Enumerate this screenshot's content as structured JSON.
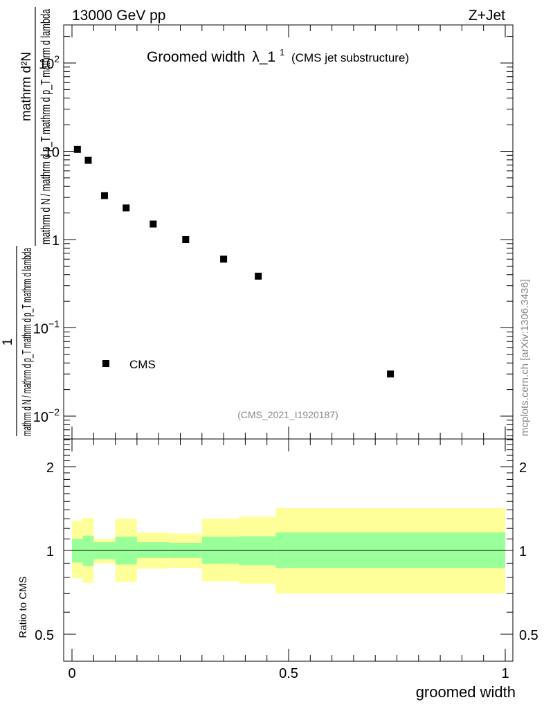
{
  "header": {
    "energy_label": "13000 GeV pp",
    "process_label": "Z+Jet"
  },
  "side_label": "mcplots.cern.ch [arXiv:1306.3436]",
  "colors": {
    "inner_band": "#99ff99",
    "outer_band": "#ffff99",
    "marker": "#000000",
    "watermark": "#888888"
  },
  "chart_data": [
    {
      "type": "scatter",
      "title_main": "Groomed width",
      "title_symbol": "λ_1",
      "title_sup": "1",
      "title_note": "(CMS jet substructure)",
      "analysis_tag": "(CMS_2021_I1920187)",
      "ylabel_frac_top": "1",
      "ylabel_frac_bottom": "mathrm d N / mathrm d p_T mathrm d p_T mathrm d lambda",
      "ylabel_numerator": "mathrm d²N",
      "ylabel_denominator": "mathrm d N / mathrm d p_T mathrm d p_T mathrm d lambda",
      "yscale": "log",
      "ylim": [
        0.006,
        300
      ],
      "xlim": [
        -0.02,
        1.02
      ],
      "y_tick_labels": [
        {
          "value": 100,
          "base": "10",
          "exp": "2"
        },
        {
          "value": 10,
          "base": "10",
          "exp": ""
        },
        {
          "value": 1,
          "base": "1",
          "exp": ""
        },
        {
          "value": 0.1,
          "base": "10",
          "exp": "−1"
        },
        {
          "value": 0.01,
          "base": "10",
          "exp": "−2"
        }
      ],
      "legend": {
        "label": "CMS",
        "position": "lower-left"
      },
      "series": [
        {
          "name": "CMS",
          "x": [
            0.0125,
            0.0375,
            0.075,
            0.125,
            0.1875,
            0.2625,
            0.35,
            0.43,
            0.735
          ],
          "y": [
            10.5,
            7.9,
            3.15,
            2.28,
            1.5,
            1.0,
            0.6,
            0.385,
            0.03
          ]
        }
      ]
    },
    {
      "type": "area",
      "ylabel": "Ratio to CMS",
      "xlabel": "groomed width",
      "yscale": "log",
      "ylim": [
        0.4,
        2.5
      ],
      "xlim": [
        -0.02,
        1.02
      ],
      "x_tick_labels": [
        {
          "value": 0,
          "label": "0"
        },
        {
          "value": 0.5,
          "label": "0.5"
        },
        {
          "value": 1,
          "label": "1"
        }
      ],
      "y_tick_labels": [
        {
          "value": 2,
          "label": "2"
        },
        {
          "value": 1,
          "label": "1"
        },
        {
          "value": 0.5,
          "label": "0.5"
        }
      ],
      "reference_line": 1,
      "bins": [
        {
          "lo": 0.0,
          "hi": 0.025,
          "inner_lo": 0.905,
          "inner_hi": 1.1,
          "outer_lo": 0.795,
          "outer_hi": 1.28
        },
        {
          "lo": 0.025,
          "hi": 0.05,
          "inner_lo": 0.88,
          "inner_hi": 1.13,
          "outer_lo": 0.765,
          "outer_hi": 1.31
        },
        {
          "lo": 0.05,
          "hi": 0.1,
          "inner_lo": 0.93,
          "inner_hi": 1.07,
          "outer_lo": 0.9,
          "outer_hi": 1.1
        },
        {
          "lo": 0.1,
          "hi": 0.15,
          "inner_lo": 0.89,
          "inner_hi": 1.12,
          "outer_lo": 0.77,
          "outer_hi": 1.3
        },
        {
          "lo": 0.15,
          "hi": 0.225,
          "inner_lo": 0.94,
          "inner_hi": 1.07,
          "outer_lo": 0.86,
          "outer_hi": 1.16
        },
        {
          "lo": 0.225,
          "hi": 0.3,
          "inner_lo": 0.94,
          "inner_hi": 1.065,
          "outer_lo": 0.865,
          "outer_hi": 1.15
        },
        {
          "lo": 0.3,
          "hi": 0.385,
          "inner_lo": 0.895,
          "inner_hi": 1.12,
          "outer_lo": 0.775,
          "outer_hi": 1.3
        },
        {
          "lo": 0.385,
          "hi": 0.47,
          "inner_lo": 0.885,
          "inner_hi": 1.125,
          "outer_lo": 0.76,
          "outer_hi": 1.32
        },
        {
          "lo": 0.47,
          "hi": 1.0,
          "inner_lo": 0.865,
          "inner_hi": 1.16,
          "outer_lo": 0.7,
          "outer_hi": 1.42
        }
      ]
    }
  ]
}
